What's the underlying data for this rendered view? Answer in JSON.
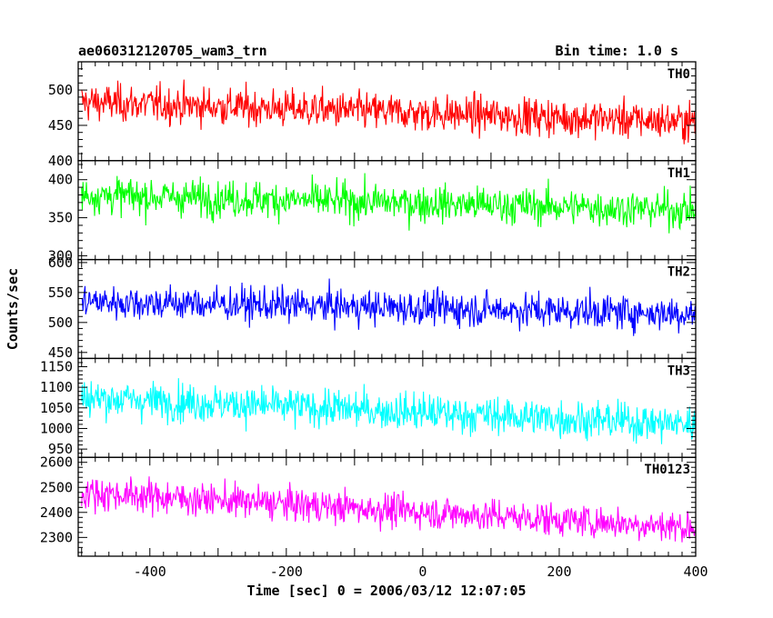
{
  "header": {
    "title": "ae060312120705_wam3_trn",
    "bin_time": "Bin time: 1.0 s"
  },
  "axes": {
    "ylabel": "Counts/sec",
    "xlabel": "Time [sec] 0 = 2006/03/12 12:07:05"
  },
  "chart_data": {
    "type": "line",
    "x_range": [
      -505,
      400
    ],
    "x_ticks": [
      -400,
      -200,
      0,
      200,
      400
    ],
    "bin_time_s": 1.0,
    "panels": [
      {
        "name": "TH0",
        "color": "#ff0000",
        "ylim": [
          400,
          540
        ],
        "yticks": [
          400,
          450,
          500
        ],
        "series": {
          "name": "TH0",
          "x": [
            -500,
            400
          ],
          "y": [
            483,
            455
          ],
          "noise": 22
        }
      },
      {
        "name": "TH1",
        "color": "#00ff00",
        "ylim": [
          295,
          425
        ],
        "yticks": [
          300,
          350,
          400
        ],
        "series": {
          "name": "TH1",
          "x": [
            -500,
            400
          ],
          "y": [
            380,
            360
          ],
          "noise": 20
        }
      },
      {
        "name": "TH2",
        "color": "#0000ff",
        "ylim": [
          440,
          605
        ],
        "yticks": [
          450,
          500,
          550,
          600
        ],
        "series": {
          "name": "TH2",
          "x": [
            -500,
            400
          ],
          "y": [
            535,
            515
          ],
          "noise": 24
        }
      },
      {
        "name": "TH3",
        "color": "#00ffff",
        "ylim": [
          930,
          1170
        ],
        "yticks": [
          950,
          1000,
          1050,
          1100,
          1150
        ],
        "series": {
          "name": "TH3",
          "x": [
            -500,
            400
          ],
          "y": [
            1075,
            1010
          ],
          "noise": 38
        }
      },
      {
        "name": "TH0123",
        "color": "#ff00ff",
        "ylim": [
          2225,
          2620
        ],
        "yticks": [
          2300,
          2400,
          2500,
          2600
        ],
        "series": {
          "name": "TH0123",
          "x": [
            -500,
            400
          ],
          "y": [
            2480,
            2340
          ],
          "noise": 55
        }
      }
    ]
  }
}
